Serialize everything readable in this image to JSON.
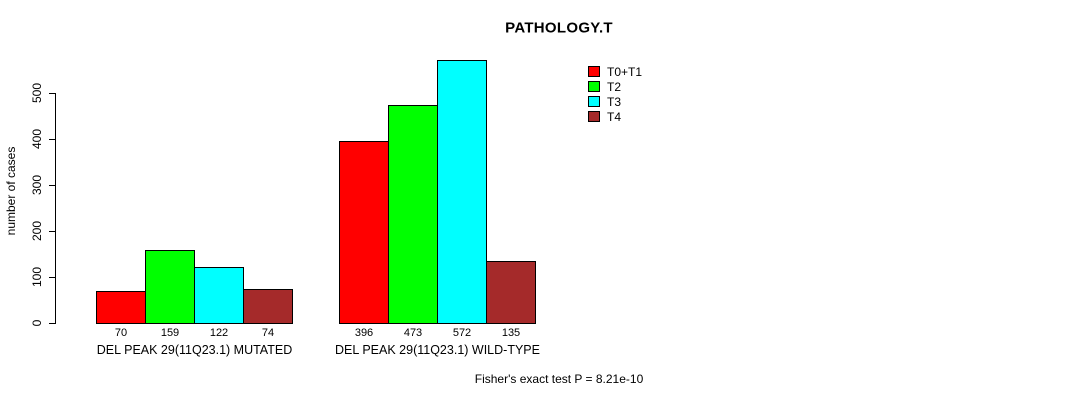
{
  "chart_data": {
    "type": "bar",
    "title": "PATHOLOGY.T",
    "ylabel": "number of cases",
    "xlabel": "",
    "ylim": [
      0,
      580
    ],
    "y_ticks": [
      0,
      100,
      200,
      300,
      400,
      500
    ],
    "grid": false,
    "legend_position": "top-right",
    "categories": [
      "DEL PEAK 29(11Q23.1) MUTATED",
      "DEL PEAK 29(11Q23.1) WILD-TYPE"
    ],
    "series": [
      {
        "name": "T0+T1",
        "color": "#ff0000",
        "values": [
          70,
          396
        ]
      },
      {
        "name": "T2",
        "color": "#00ff00",
        "values": [
          159,
          473
        ]
      },
      {
        "name": "T3",
        "color": "#00ffff",
        "values": [
          122,
          572
        ]
      },
      {
        "name": "T4",
        "color": "#a52a2a",
        "values": [
          74,
          135
        ]
      }
    ],
    "bar_value_labels": true,
    "annotation": "Fisher's exact test P = 8.21e-10",
    "colors": {
      "background": "#ffffff",
      "axis": "#000000",
      "text": "#000000"
    }
  }
}
